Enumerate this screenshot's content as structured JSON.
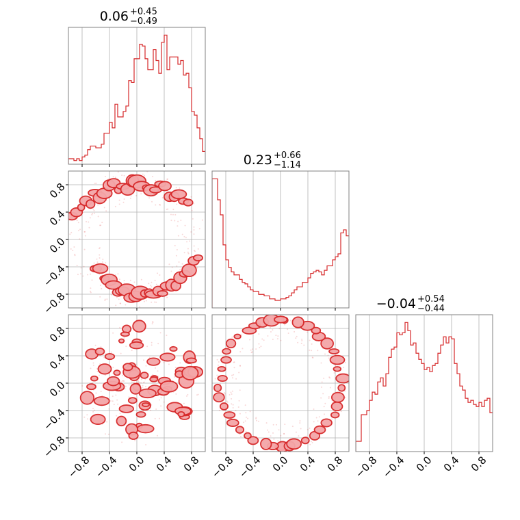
{
  "style": {
    "color": "#d62728",
    "fill": "#f4a6a8"
  },
  "titles": [
    {
      "value": "0.06",
      "plus": "+0.45",
      "minus": "−0.49"
    },
    {
      "value": "0.23",
      "plus": "+0.66",
      "minus": "−1.14"
    },
    {
      "value": "−0.04",
      "plus": "+0.54",
      "minus": "−0.44"
    }
  ],
  "tick_labels": {
    "x": [
      "−0.8",
      "−0.4",
      "0.0",
      "0.4",
      "0.8"
    ],
    "y": [
      "0.8",
      "0.4",
      "0.0",
      "−0.4",
      "−0.8"
    ]
  },
  "chart_data": {
    "type": "corner",
    "parameters": 3,
    "range": [
      -1,
      1
    ],
    "ticks": [
      -0.8,
      -0.4,
      0.0,
      0.4,
      0.8
    ],
    "grid": true,
    "histograms": [
      {
        "bins": 50,
        "counts": [
          3,
          3,
          2,
          3,
          2,
          4,
          5,
          8,
          10,
          10,
          9,
          9,
          11,
          17,
          17,
          23,
          20,
          33,
          26,
          26,
          29,
          32,
          46,
          45,
          58,
          58,
          66,
          65,
          58,
          52,
          52,
          63,
          57,
          50,
          67,
          71,
          52,
          59,
          59,
          59,
          55,
          57,
          49,
          50,
          42,
          29,
          27,
          20,
          14,
          7
        ]
      },
      {
        "bins": 50,
        "counts": [
          86,
          86,
          72,
          62,
          42,
          32,
          27,
          24,
          22,
          22,
          19,
          17,
          16,
          14,
          12,
          11,
          11,
          9,
          9,
          8,
          8,
          6,
          6,
          5,
          5,
          6,
          6,
          7,
          8,
          10,
          12,
          14,
          14,
          17,
          17,
          20,
          23,
          24,
          25,
          24,
          22,
          25,
          28,
          28,
          32,
          34,
          36,
          50,
          52,
          48
        ]
      },
      {
        "bins": 50,
        "counts": [
          5,
          5,
          18,
          18,
          20,
          25,
          29,
          28,
          34,
          36,
          32,
          38,
          46,
          50,
          51,
          58,
          57,
          58,
          63,
          59,
          52,
          53,
          48,
          45,
          43,
          40,
          41,
          39,
          42,
          43,
          48,
          52,
          56,
          53,
          56,
          55,
          43,
          38,
          32,
          30,
          26,
          24,
          25,
          23,
          22,
          24,
          22,
          25,
          26,
          19
        ]
      }
    ],
    "pairs": [
      {
        "x": "param1",
        "y": "param2",
        "shape": "ring, density concentrated at y ≈ +0.9 and y ≈ −0.9"
      },
      {
        "x": "param1",
        "y": "param3",
        "shape": "broad blob centered near (0.1, 0.0)"
      },
      {
        "x": "param2",
        "y": "param3",
        "shape": "ring, density concentrated at x ≈ ±0.9"
      }
    ]
  }
}
